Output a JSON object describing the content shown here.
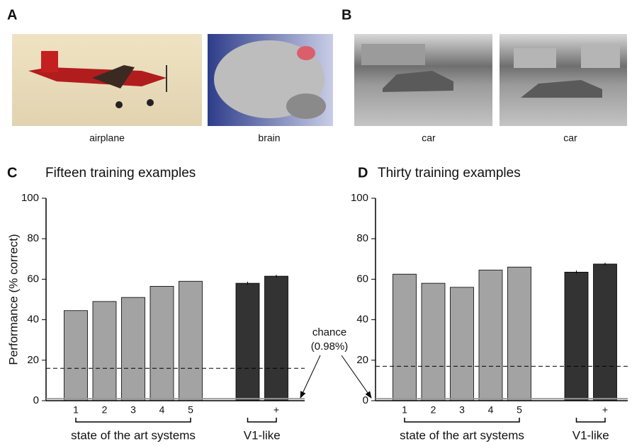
{
  "figure": {
    "panel_labels": [
      "A",
      "B"
    ],
    "captions": [
      "airplane",
      "brain",
      "car",
      "car"
    ]
  },
  "chance_label": [
    "chance",
    "(0.98%)"
  ],
  "chart_data": [
    {
      "type": "bar",
      "panel_label": "C",
      "title": "Fifteen training examples",
      "y_label": "Performance (% correct)",
      "categories": [
        "1",
        "2",
        "3",
        "4",
        "5",
        null,
        "+"
      ],
      "series": [
        {
          "name": "state of the art systems",
          "color": "#a3a3a3",
          "values": [
            44.5,
            49,
            51,
            56.5,
            59,
            null,
            null
          ]
        },
        {
          "name": "V1-like",
          "color": "#333333",
          "values": [
            null,
            null,
            null,
            null,
            null,
            58,
            61.5
          ],
          "errors": [
            null,
            null,
            null,
            null,
            null,
            0.8,
            0.7
          ]
        }
      ],
      "ylim": [
        0,
        100
      ],
      "yticks": [
        0,
        20,
        40,
        60,
        80,
        100
      ],
      "reference_line": 16,
      "chance": 0.98
    },
    {
      "type": "bar",
      "panel_label": "D",
      "title": "Thirty training examples",
      "categories": [
        "1",
        "2",
        "3",
        "4",
        "5",
        null,
        "+"
      ],
      "series": [
        {
          "name": "state of the art systems",
          "color": "#a3a3a3",
          "values": [
            62.5,
            58,
            56,
            64.5,
            66,
            null,
            null
          ]
        },
        {
          "name": "V1-like",
          "color": "#333333",
          "values": [
            null,
            null,
            null,
            null,
            null,
            63.5,
            67.5
          ],
          "errors": [
            null,
            null,
            null,
            null,
            null,
            0.8,
            0.7
          ]
        }
      ],
      "ylim": [
        0,
        100
      ],
      "yticks": [
        0,
        20,
        40,
        60,
        80,
        100
      ],
      "reference_line": 17,
      "chance": 0.98
    }
  ]
}
